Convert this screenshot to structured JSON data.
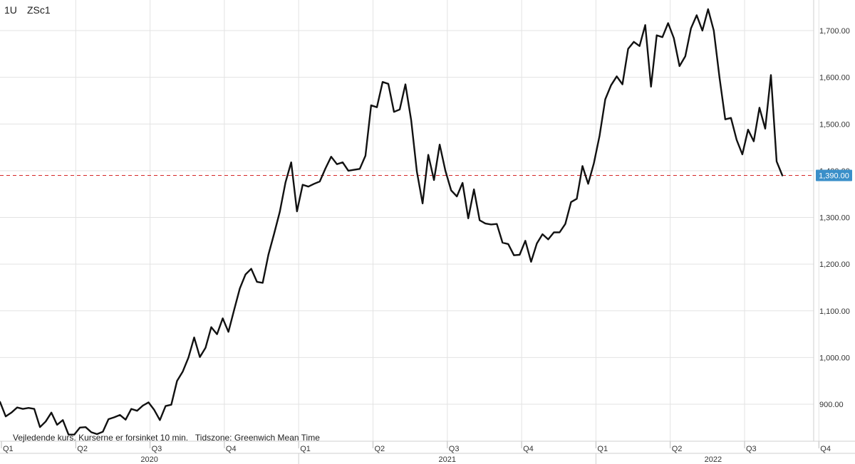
{
  "header": {
    "period": "1U",
    "symbol": "ZSc1"
  },
  "footnote": "Vejledende kurs. Kurserne er forsinket 10 min.   Tidszone: Greenwich Mean Time",
  "colors": {
    "line": "#111111",
    "grid": "#e3e3e3",
    "reference": "#d62728",
    "badge": "#3a8fc9"
  },
  "chart_data": {
    "type": "line",
    "title": "",
    "xlabel": "",
    "ylabel": "",
    "ylim": [
      820,
      1760
    ],
    "y_ticks": [
      "900.00",
      "1,000.00",
      "1,100.00",
      "1,200.00",
      "1,300.00",
      "1,400.00",
      "1,500.00",
      "1,600.00",
      "1,700.00"
    ],
    "y_tick_values": [
      900,
      1000,
      1100,
      1200,
      1300,
      1400,
      1500,
      1600,
      1700
    ],
    "quarter_labels": [
      "Q1",
      "Q2",
      "Q3",
      "Q4",
      "Q1",
      "Q2",
      "Q3",
      "Q4",
      "Q1",
      "Q2",
      "Q3",
      "Q4"
    ],
    "year_labels": [
      "2020",
      "2021",
      "2022"
    ],
    "grid": true,
    "reference_line": {
      "value": 1390,
      "label": "1,390.00"
    },
    "series": [
      {
        "values": [
          905,
          874,
          882,
          893,
          890,
          892,
          890,
          851,
          863,
          882,
          856,
          866,
          835,
          835,
          850,
          851,
          840,
          836,
          841,
          868,
          872,
          877,
          867,
          890,
          886,
          897,
          904,
          888,
          866,
          896,
          899,
          950,
          970,
          1000,
          1043,
          1001,
          1021,
          1065,
          1050,
          1084,
          1055,
          1102,
          1148,
          1178,
          1190,
          1162,
          1160,
          1220,
          1265,
          1312,
          1375,
          1418,
          1313,
          1370,
          1366,
          1372,
          1377,
          1405,
          1430,
          1414,
          1418,
          1400,
          1402,
          1404,
          1432,
          1540,
          1536,
          1590,
          1586,
          1526,
          1531,
          1585,
          1508,
          1398,
          1330,
          1434,
          1380,
          1456,
          1400,
          1358,
          1345,
          1374,
          1298,
          1360,
          1294,
          1287,
          1285,
          1286,
          1246,
          1243,
          1219,
          1220,
          1250,
          1205,
          1244,
          1264,
          1253,
          1268,
          1268,
          1286,
          1333,
          1340,
          1410,
          1372,
          1416,
          1475,
          1553,
          1583,
          1602,
          1585,
          1661,
          1676,
          1667,
          1712,
          1580,
          1690,
          1686,
          1716,
          1684,
          1624,
          1645,
          1705,
          1733,
          1700,
          1746,
          1700,
          1600,
          1510,
          1513,
          1466,
          1435,
          1488,
          1463,
          1535,
          1490,
          1605,
          1420,
          1390
        ]
      }
    ]
  }
}
